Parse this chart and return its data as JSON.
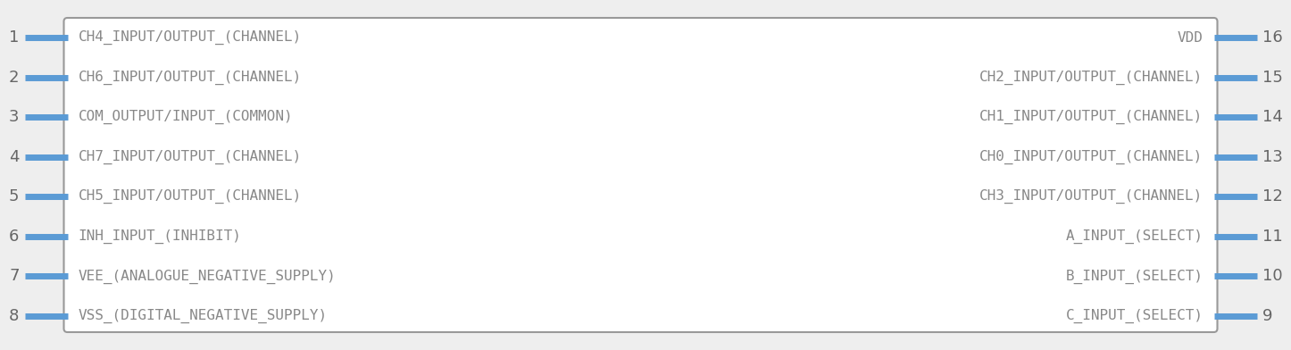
{
  "fig_width": 14.08,
  "fig_height": 3.72,
  "bg_color": "#eeeeee",
  "box_color": "#ffffff",
  "box_edge_color": "#999999",
  "pin_color": "#5b9bd5",
  "pin_num_color": "#666666",
  "pin_text_color": "#888888",
  "left_pins": [
    {
      "num": 1,
      "label": "CH4_INPUT/OUTPUT_(CHANNEL)"
    },
    {
      "num": 2,
      "label": "CH6_INPUT/OUTPUT_(CHANNEL)"
    },
    {
      "num": 3,
      "label": "COM_OUTPUT/INPUT_(COMMON)"
    },
    {
      "num": 4,
      "label": "CH7_INPUT/OUTPUT_(CHANNEL)"
    },
    {
      "num": 5,
      "label": "CH5_INPUT/OUTPUT_(CHANNEL)"
    },
    {
      "num": 6,
      "label": "INH_INPUT_(INHIBIT)"
    },
    {
      "num": 7,
      "label": "VEE_(ANALOGUE_NEGATIVE_SUPPLY)"
    },
    {
      "num": 8,
      "label": "VSS_(DIGITAL_NEGATIVE_SUPPLY)"
    }
  ],
  "right_pins": [
    {
      "num": 16,
      "label": "VDD"
    },
    {
      "num": 15,
      "label": "CH2_INPUT/OUTPUT_(CHANNEL)"
    },
    {
      "num": 14,
      "label": "CH1_INPUT/OUTPUT_(CHANNEL)"
    },
    {
      "num": 13,
      "label": "CH0_INPUT/OUTPUT_(CHANNEL)"
    },
    {
      "num": 12,
      "label": "CH3_INPUT/OUTPUT_(CHANNEL)"
    },
    {
      "num": 11,
      "label": "A_INPUT_(SELECT)"
    },
    {
      "num": 10,
      "label": "B_INPUT_(SELECT)"
    },
    {
      "num": 9,
      "label": "C_INPUT_(SELECT)"
    }
  ]
}
